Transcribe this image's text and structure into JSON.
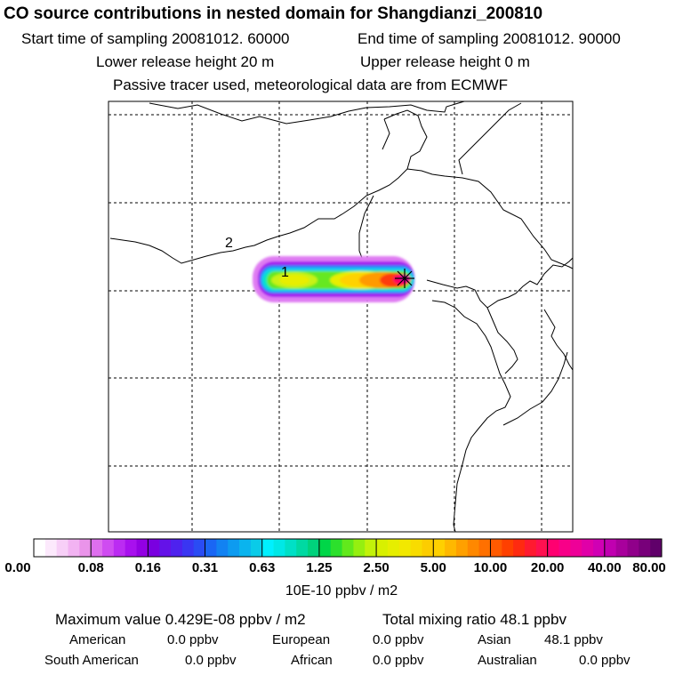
{
  "header": {
    "title": "CO  source contributions in nested domain for Shangdianzi_200810",
    "start_time": "Start time of sampling 20081012. 60000",
    "end_time": "End time of sampling 20081012. 90000",
    "lower_height": "Lower release height   20 m",
    "upper_height": "Upper release height    0 m",
    "tracer_note": "Passive tracer used, meteorological data are from ECMWF"
  },
  "map": {
    "labels": [
      "2",
      "1"
    ],
    "receptor_marker": "star-icon"
  },
  "legend": {
    "ticks": [
      "0.00",
      "0.08",
      "0.16",
      "0.31",
      "0.63",
      "1.25",
      "2.50",
      "5.00",
      "10.00",
      "20.00",
      "40.00",
      "80.00"
    ],
    "units": "10E-10 ppbv / m2",
    "colors": [
      [
        "#ffffff",
        "#fce9fc",
        "#f7cff7",
        "#f2b3f2",
        "#ea94ea"
      ],
      [
        "#de6fee",
        "#cf4cf1",
        "#bb2bf2",
        "#a810ee",
        "#9300e3"
      ],
      [
        "#7a00e0",
        "#6412e8",
        "#4e22ee",
        "#3a36f2",
        "#2a4cf4"
      ],
      [
        "#1a66f4",
        "#1282f2",
        "#0d9bf0",
        "#0ab4ee",
        "#0acbe8"
      ],
      [
        "#00f0ff",
        "#00e8e6",
        "#00e0c6",
        "#00d9a2",
        "#00d27c"
      ],
      [
        "#00d648",
        "#2ce02c",
        "#62e91c",
        "#96ef10",
        "#c2f20a"
      ],
      [
        "#d8f000",
        "#e6ee00",
        "#f2e800",
        "#f8dc00",
        "#fccd00"
      ],
      [
        "#ffd000",
        "#ffb800",
        "#ffa000",
        "#ff8800",
        "#ff7000"
      ],
      [
        "#ff5a00",
        "#ff4000",
        "#ff2a10",
        "#ff1a30",
        "#ff1050"
      ],
      [
        "#ff0070",
        "#f80088",
        "#ee0098",
        "#e000a8",
        "#d000b4"
      ],
      [
        "#c000b0",
        "#a8009c",
        "#90008a",
        "#78007a",
        "#60006a"
      ]
    ]
  },
  "stats": {
    "max_value": "Maximum value  0.429E-08 ppbv / m2",
    "total_mixing": "Total mixing ratio      48.1 ppbv",
    "american_label": "American",
    "american_value": "0.0 ppbv",
    "european_label": "European",
    "european_value": "0.0 ppbv",
    "asian_label": "Asian",
    "asian_value": "48.1 ppbv",
    "south_american_label": "South American",
    "south_american_value": "0.0 ppbv",
    "african_label": "African",
    "african_value": "0.0 ppbv",
    "australian_label": "Australian",
    "australian_value": "0.0 ppbv"
  },
  "colors": {
    "frame": "#000000",
    "background": "#ffffff"
  }
}
